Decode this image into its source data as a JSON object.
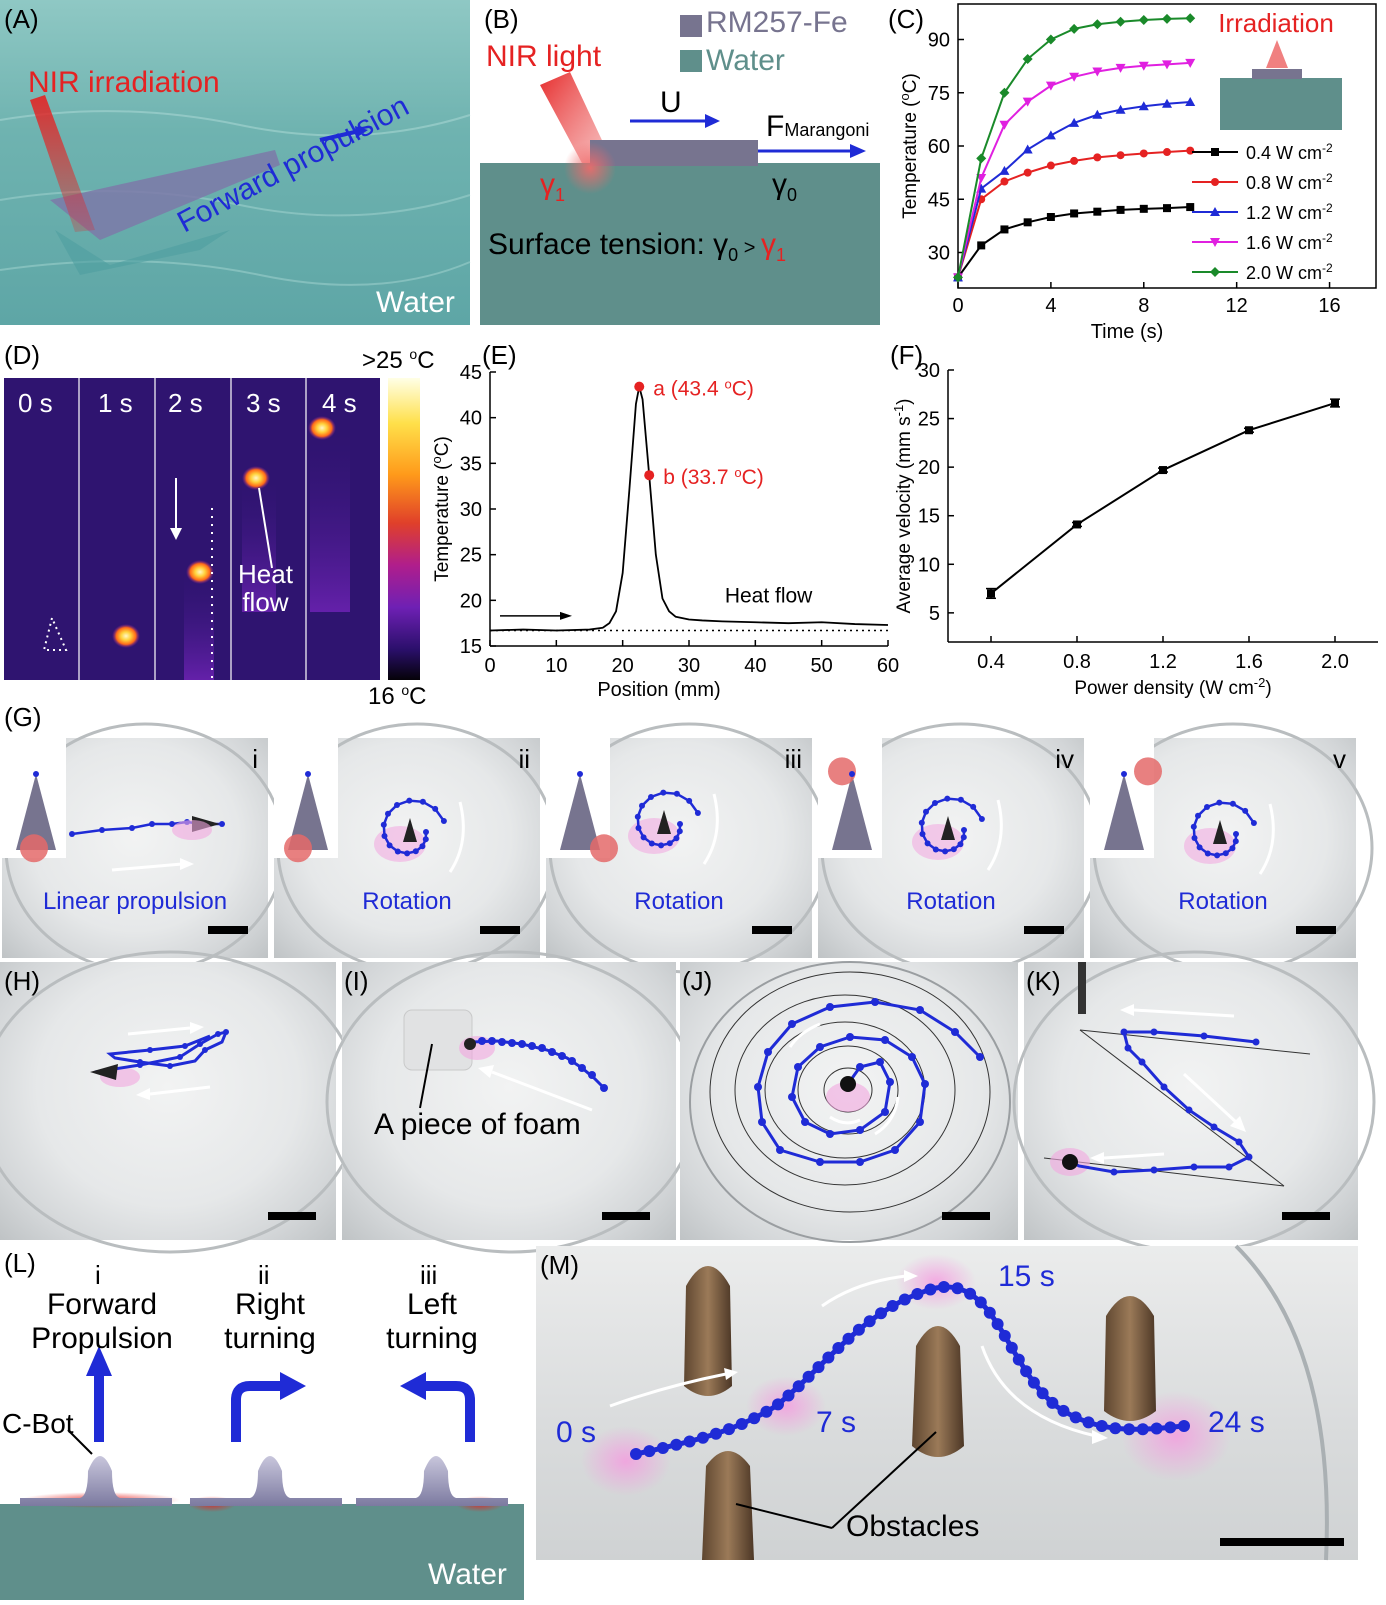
{
  "labels": {
    "A": "(A)",
    "B": "(B)",
    "C": "(C)",
    "D": "(D)",
    "E": "(E)",
    "F": "(F)",
    "G": "(G)",
    "H": "(H)",
    "I": "(I)",
    "J": "(J)",
    "K": "(K)",
    "L": "(L)",
    "M": "(M)"
  },
  "panelA": {
    "nir": "NIR irradiation",
    "forward": "Forward propulsion",
    "water": "Water"
  },
  "panelB": {
    "legend1": "RM257-Fe",
    "legend2": "Water",
    "nir": "NIR light",
    "u": "U",
    "f": "F",
    "f_sub": "Marangoni",
    "g1": "γ",
    "g1_sub": "1",
    "g0": "γ",
    "g0_sub": "0",
    "tension_pre": "Surface tension: ",
    "tension_g0": "γ",
    "tension_g0_sub": "0",
    "tension_gt": " > ",
    "tension_g1": "γ",
    "tension_g1_sub": "1"
  },
  "panelC": {
    "irradiation": "Irradiation"
  },
  "panelD": {
    "times": [
      "0 s",
      "1 s",
      "2 s",
      "3 s",
      "4 s"
    ],
    "heat1": "Heat",
    "heat2": "flow",
    "scale_top": ">25 ",
    "scale_top_sup": "o",
    "scale_top_unit": "C",
    "scale_bot": "16 ",
    "scale_bot_sup": "o",
    "scale_bot_unit": "C"
  },
  "panelE": {
    "pt_a": "a (43.4 ",
    "pt_a_sup": "o",
    "pt_a_end": "C)",
    "pt_b": "b (33.7 ",
    "pt_b_sup": "o",
    "pt_b_end": "C)",
    "heat": "Heat flow"
  },
  "panelG": {
    "romans": [
      "i",
      "ii",
      "iii",
      "iv",
      "v"
    ],
    "captions": [
      "Linear propulsion",
      "Rotation",
      "Rotation",
      "Rotation",
      "Rotation"
    ]
  },
  "panelI": {
    "foam": "A piece of foam"
  },
  "panelL": {
    "romans": [
      "i",
      "ii",
      "iii"
    ],
    "t1a": "Forward",
    "t1b": "Propulsion",
    "t2a": "Right",
    "t2b": "turning",
    "t3a": "Left",
    "t3b": "turning",
    "cbot": "C-Bot",
    "water": "Water"
  },
  "panelM": {
    "t0": "0 s",
    "t7": "7 s",
    "t15": "15 s",
    "t24": "24 s",
    "obstacles": "Obstacles"
  },
  "chart_data": [
    {
      "type": "line",
      "panel": "C",
      "xlabel": "Time (s)",
      "ylabel": "Temperature (oC)",
      "xlim": [
        0,
        18
      ],
      "ylim": [
        20,
        100
      ],
      "xticks": [
        0,
        4,
        8,
        12,
        16
      ],
      "yticks": [
        30,
        45,
        60,
        75,
        90
      ],
      "x": [
        0,
        1,
        2,
        3,
        4,
        5,
        6,
        7,
        8,
        9,
        10
      ],
      "series": [
        {
          "name": "0.4 W cm-2",
          "color": "#000000",
          "marker": "square",
          "values": [
            23,
            32,
            36.5,
            38.5,
            40,
            41,
            41.5,
            42,
            42.3,
            42.5,
            42.8
          ]
        },
        {
          "name": "0.8 W cm-2",
          "color": "#e52222",
          "marker": "circle",
          "values": [
            23,
            45,
            50,
            52.5,
            54.5,
            55.8,
            56.8,
            57.4,
            57.9,
            58.3,
            58.7
          ]
        },
        {
          "name": "1.2 W cm-2",
          "color": "#1f2bd6",
          "marker": "triangle",
          "values": [
            23,
            48,
            53,
            59,
            63,
            66.5,
            68.8,
            70.2,
            71.2,
            71.9,
            72.4
          ]
        },
        {
          "name": "1.6 W cm-2",
          "color": "#e020e0",
          "marker": "triangle-down",
          "values": [
            23,
            51,
            66,
            72.5,
            77,
            79.5,
            81,
            82,
            82.6,
            83,
            83.4
          ]
        },
        {
          "name": "2.0 W cm-2",
          "color": "#1a8a2a",
          "marker": "diamond",
          "values": [
            23,
            56.5,
            75,
            84.5,
            90,
            93,
            94.3,
            95,
            95.5,
            95.8,
            96
          ]
        }
      ]
    },
    {
      "type": "line",
      "panel": "E",
      "xlabel": "Position (mm)",
      "ylabel": "Temperature (oC)",
      "xlim": [
        0,
        60
      ],
      "ylim": [
        15,
        45
      ],
      "xticks": [
        0,
        10,
        20,
        30,
        40,
        50,
        60
      ],
      "yticks": [
        15,
        20,
        25,
        30,
        35,
        40,
        45
      ],
      "baseline": 16.7,
      "x": [
        0,
        5,
        10,
        15,
        17,
        18,
        19,
        20,
        21,
        22,
        22.5,
        23,
        24,
        25,
        26,
        27,
        28,
        30,
        32,
        35,
        40,
        45,
        50,
        55,
        60
      ],
      "values": [
        16.7,
        16.8,
        16.7,
        16.8,
        17.0,
        17.5,
        18.8,
        23,
        32,
        41.5,
        43.4,
        42,
        33.7,
        25,
        20.2,
        18.8,
        18.2,
        17.9,
        17.8,
        17.7,
        17.6,
        17.5,
        17.6,
        17.4,
        17.3
      ],
      "points": [
        {
          "label": "a",
          "x": 22.5,
          "y": 43.4
        },
        {
          "label": "b",
          "x": 24,
          "y": 33.7
        }
      ]
    },
    {
      "type": "line",
      "panel": "F",
      "xlabel": "Power density (W cm-2)",
      "ylabel": "Average velocity (mm s-1)",
      "xlim": [
        0.2,
        2.2
      ],
      "ylim": [
        2,
        30
      ],
      "xticks": [
        0.4,
        0.8,
        1.2,
        1.6,
        2.0
      ],
      "yticks": [
        5,
        10,
        15,
        20,
        25,
        30
      ],
      "x": [
        0.4,
        0.8,
        1.2,
        1.6,
        2.0
      ],
      "values": [
        7.0,
        14.1,
        19.7,
        23.8,
        26.6
      ],
      "errors": [
        0.5,
        0.2,
        0.2,
        0.2,
        0.4
      ]
    }
  ]
}
